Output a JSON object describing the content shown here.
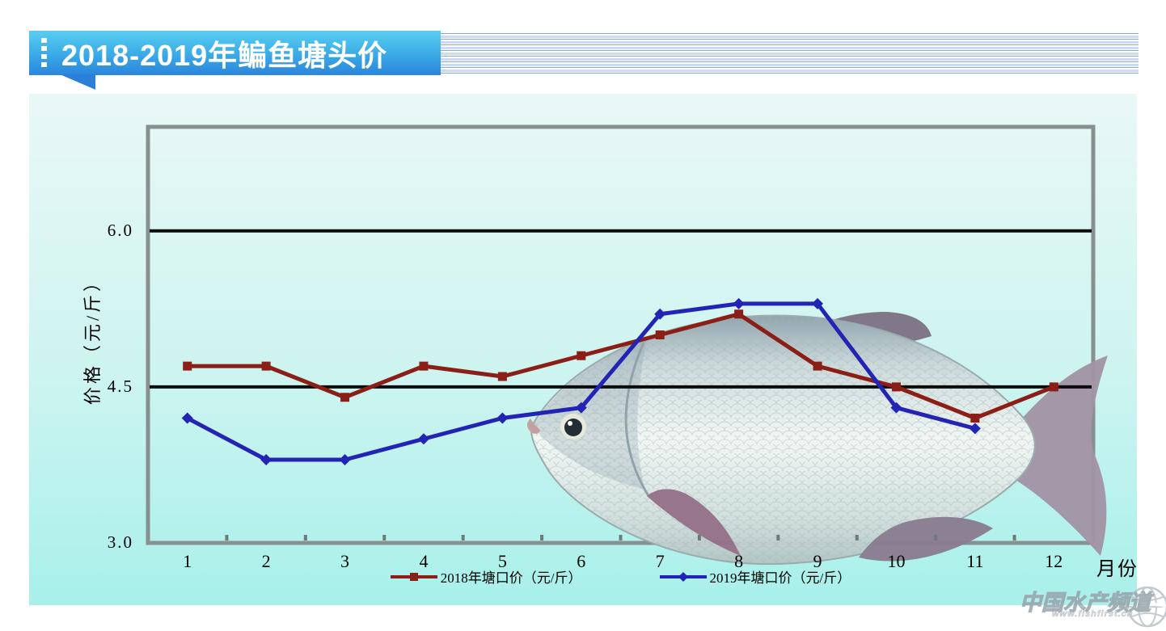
{
  "header": {
    "title": "2018-2019年鳊鱼塘头价"
  },
  "watermark": {
    "text": "中国水产频道",
    "url": "www.fishfirst.cn"
  },
  "colors": {
    "banner_gradient_top": "#58cff0",
    "banner_gradient_bottom": "#2b85dd",
    "banner_text": "#ffffff",
    "pinstripe_dark": "#86a7d8",
    "pinstripe_light": "#ccdbf3",
    "panel_gradient_top": "#e9f8f6",
    "panel_gradient_bottom": "#a8f0ea",
    "plot_border": "#87908f",
    "gridline": "#0c0c0c",
    "series_2018": "#8b1e16",
    "series_2019": "#2323b4"
  },
  "chart_data": {
    "type": "line",
    "title": "2018-2019年鳊鱼塘头价",
    "categories": [
      "1",
      "2",
      "3",
      "4",
      "5",
      "6",
      "7",
      "8",
      "9",
      "10",
      "11",
      "12"
    ],
    "xlabel": "月份",
    "ylabel": "价格（元/斤）",
    "ylim": [
      3.0,
      7.0
    ],
    "yticks": [
      3.0,
      4.5,
      6.0
    ],
    "ytick_labels": [
      "3.0",
      "4.5",
      "6.0"
    ],
    "grid": "horizontal black gridlines at 4.5 and 6.0",
    "legend_position": "bottom-center",
    "series": [
      {
        "name": "2018年塘口价（元/斤）",
        "color": "#8b1e16",
        "marker": "square",
        "values": [
          4.7,
          4.7,
          4.4,
          4.7,
          4.6,
          4.8,
          5.0,
          5.2,
          4.7,
          4.5,
          4.2,
          4.5
        ]
      },
      {
        "name": "2019年塘口价（元/斤）",
        "color": "#2323b4",
        "marker": "diamond",
        "values": [
          4.2,
          3.8,
          3.8,
          4.0,
          4.2,
          4.3,
          5.2,
          5.3,
          5.3,
          4.3,
          4.1,
          null
        ]
      }
    ]
  }
}
